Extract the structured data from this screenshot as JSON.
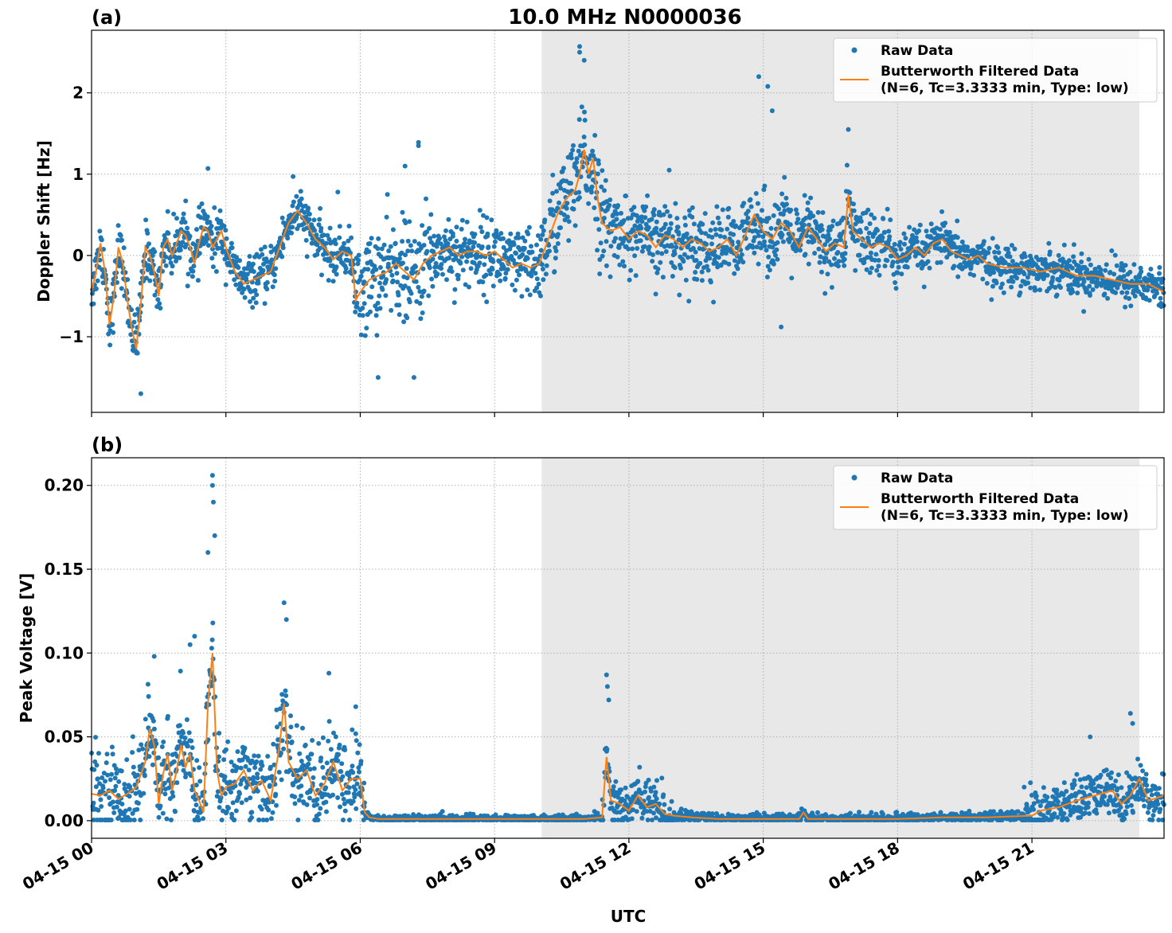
{
  "figure": {
    "title": "10.0 MHz N0000036",
    "xlabel": "UTC"
  },
  "colors": {
    "raw": "#1f77b4",
    "filtered": "#ff7f0e",
    "shade": "#e8e8e8",
    "grid": "#b0b0b0"
  },
  "chart_data": [
    {
      "type": "scatter",
      "panel_label": "(a)",
      "ylabel": "Doppler Shift [Hz]",
      "x_ticks": [
        "04-15 00",
        "04-15 03",
        "04-15 06",
        "04-15 09",
        "04-15 12",
        "04-15 15",
        "04-15 18",
        "04-15 21"
      ],
      "x_tick_hours": [
        0,
        3,
        6,
        9,
        12,
        15,
        18,
        21
      ],
      "xlim_hours": [
        0,
        23.95
      ],
      "ylim": [
        -1.93,
        2.77
      ],
      "y_ticks": [
        -1,
        0,
        1,
        2
      ],
      "y_tick_labels": [
        "−1",
        "0",
        "1",
        "2"
      ],
      "shaded_span_hours": [
        10.05,
        23.4
      ],
      "grid": true,
      "legend": {
        "placement": "top-right",
        "entries": [
          "Raw Data",
          "Butterworth Filtered Data",
          "(N=6, Tc=3.3333 min, Type: low)"
        ]
      },
      "series": [
        {
          "name": "Butterworth Filtered Data (N=6, Tc=3.3333 min, Type: low)",
          "kind": "line",
          "x": [
            0,
            0.1,
            0.2,
            0.3,
            0.4,
            0.5,
            0.6,
            0.7,
            0.8,
            0.9,
            1.0,
            1.1,
            1.2,
            1.3,
            1.4,
            1.5,
            1.6,
            1.7,
            1.8,
            1.9,
            2.0,
            2.1,
            2.2,
            2.3,
            2.4,
            2.5,
            2.6,
            2.7,
            2.8,
            2.9,
            3.0,
            3.2,
            3.4,
            3.6,
            3.8,
            4.0,
            4.2,
            4.4,
            4.6,
            4.8,
            5.0,
            5.2,
            5.4,
            5.6,
            5.8,
            5.9,
            6.0,
            6.2,
            6.4,
            6.6,
            6.8,
            7.0,
            7.2,
            7.4,
            7.6,
            7.8,
            8.0,
            8.2,
            8.4,
            8.6,
            8.8,
            9.0,
            9.2,
            9.4,
            9.6,
            9.8,
            10.0,
            10.2,
            10.4,
            10.6,
            10.8,
            10.9,
            11.0,
            11.1,
            11.2,
            11.3,
            11.4,
            11.6,
            11.8,
            12.0,
            12.2,
            12.4,
            12.6,
            12.8,
            13.0,
            13.2,
            13.4,
            13.6,
            13.8,
            14.0,
            14.2,
            14.4,
            14.6,
            14.8,
            15.0,
            15.2,
            15.4,
            15.6,
            15.8,
            16.0,
            16.2,
            16.4,
            16.6,
            16.8,
            16.9,
            17.0,
            17.2,
            17.4,
            17.6,
            17.8,
            18.0,
            18.2,
            18.4,
            18.6,
            18.8,
            19.0,
            19.2,
            19.4,
            19.6,
            19.8,
            20.0,
            20.4,
            20.8,
            21.2,
            21.6,
            22.0,
            22.4,
            22.8,
            23.2,
            23.6,
            23.95
          ],
          "y": [
            -0.45,
            -0.2,
            0.15,
            -0.2,
            -0.85,
            -0.5,
            0.1,
            -0.1,
            -0.55,
            -0.9,
            -1.15,
            -0.6,
            0.1,
            0.0,
            -0.2,
            -0.5,
            0.1,
            0.2,
            0.0,
            0.15,
            0.3,
            0.25,
            0.1,
            -0.1,
            0.15,
            0.35,
            0.3,
            0.1,
            0.2,
            0.3,
            0.1,
            -0.2,
            -0.35,
            -0.3,
            -0.25,
            -0.2,
            0.1,
            0.4,
            0.55,
            0.4,
            0.2,
            0.1,
            -0.05,
            0.05,
            0.0,
            -0.55,
            -0.45,
            -0.3,
            -0.25,
            -0.2,
            -0.1,
            -0.2,
            -0.3,
            -0.1,
            0.0,
            0.05,
            0.1,
            0.0,
            0.05,
            0.05,
            0.0,
            0.05,
            -0.05,
            -0.15,
            -0.1,
            -0.15,
            -0.1,
            0.2,
            0.5,
            0.7,
            0.8,
            1.0,
            1.3,
            1.0,
            1.2,
            0.7,
            0.4,
            0.3,
            0.35,
            0.2,
            0.3,
            0.25,
            0.1,
            0.25,
            0.2,
            0.1,
            0.2,
            0.15,
            0.05,
            0.1,
            0.2,
            0.0,
            0.25,
            0.5,
            0.3,
            0.2,
            0.4,
            0.3,
            0.1,
            0.35,
            0.2,
            0.05,
            0.15,
            0.1,
            0.75,
            0.3,
            0.2,
            0.1,
            0.15,
            0.1,
            -0.05,
            0.0,
            0.1,
            0.0,
            0.15,
            0.2,
            0.05,
            0.0,
            -0.05,
            0.0,
            -0.1,
            -0.15,
            -0.15,
            -0.2,
            -0.15,
            -0.25,
            -0.25,
            -0.3,
            -0.35,
            -0.35,
            -0.45
          ]
        },
        {
          "name": "Raw Data",
          "kind": "scatter",
          "spread": [
            {
              "from": 0,
              "to": 3.0,
              "sigma": 0.16
            },
            {
              "from": 3.0,
              "to": 5.9,
              "sigma": 0.14
            },
            {
              "from": 5.9,
              "to": 7.6,
              "sigma": 0.3
            },
            {
              "from": 7.6,
              "to": 10.0,
              "sigma": 0.22
            },
            {
              "from": 10.0,
              "to": 11.6,
              "sigma": 0.3
            },
            {
              "from": 11.6,
              "to": 18.0,
              "sigma": 0.22
            },
            {
              "from": 18.0,
              "to": 23.95,
              "sigma": 0.13
            }
          ],
          "extremes": [
            {
              "x": 1.1,
              "y": -1.7
            },
            {
              "x": 2.6,
              "y": 1.07
            },
            {
              "x": 4.5,
              "y": 0.97
            },
            {
              "x": 7.3,
              "y": 1.39
            },
            {
              "x": 7.3,
              "y": 1.35
            },
            {
              "x": 7.0,
              "y": 1.1
            },
            {
              "x": 6.4,
              "y": -1.5
            },
            {
              "x": 7.2,
              "y": -1.5
            },
            {
              "x": 10.9,
              "y": 2.57
            },
            {
              "x": 10.9,
              "y": 2.5
            },
            {
              "x": 11.0,
              "y": 2.4
            },
            {
              "x": 14.9,
              "y": 2.2
            },
            {
              "x": 15.1,
              "y": 2.08
            },
            {
              "x": 15.2,
              "y": 1.78
            },
            {
              "x": 16.9,
              "y": 1.55
            },
            {
              "x": 15.4,
              "y": -0.88
            },
            {
              "x": 12.9,
              "y": 1.05
            },
            {
              "x": 5.5,
              "y": 0.78
            }
          ]
        }
      ]
    },
    {
      "type": "scatter",
      "panel_label": "(b)",
      "ylabel": "Peak Voltage [V]",
      "x_ticks": [
        "04-15 00",
        "04-15 03",
        "04-15 06",
        "04-15 09",
        "04-15 12",
        "04-15 15",
        "04-15 18",
        "04-15 21"
      ],
      "x_tick_hours": [
        0,
        3,
        6,
        9,
        12,
        15,
        18,
        21
      ],
      "xlim_hours": [
        0,
        23.95
      ],
      "ylim": [
        -0.0105,
        0.2165
      ],
      "y_ticks": [
        0.0,
        0.05,
        0.1,
        0.15,
        0.2
      ],
      "y_tick_labels": [
        "0.00",
        "0.05",
        "0.10",
        "0.15",
        "0.20"
      ],
      "shaded_span_hours": [
        10.05,
        23.4
      ],
      "grid": true,
      "legend": {
        "placement": "top-right",
        "entries": [
          "Raw Data",
          "Butterworth Filtered Data",
          "(N=6, Tc=3.3333 min, Type: low)"
        ]
      },
      "series": [
        {
          "name": "Butterworth Filtered Data (N=6, Tc=3.3333 min, Type: low)",
          "kind": "line",
          "x": [
            0,
            0.2,
            0.4,
            0.6,
            0.8,
            1.0,
            1.2,
            1.3,
            1.4,
            1.5,
            1.6,
            1.7,
            1.8,
            1.9,
            2.0,
            2.1,
            2.2,
            2.3,
            2.4,
            2.5,
            2.6,
            2.7,
            2.8,
            2.9,
            3.0,
            3.2,
            3.4,
            3.6,
            3.8,
            4.0,
            4.2,
            4.3,
            4.4,
            4.6,
            4.8,
            5.0,
            5.2,
            5.4,
            5.6,
            5.8,
            6.0,
            6.1,
            6.2,
            6.4,
            7.0,
            8.0,
            9.0,
            10.0,
            11.0,
            11.4,
            11.5,
            11.6,
            11.8,
            12.0,
            12.2,
            12.4,
            12.6,
            12.8,
            13.0,
            13.4,
            14.0,
            15.0,
            15.8,
            15.9,
            16.0,
            17.0,
            18.0,
            19.0,
            20.0,
            21.0,
            21.2,
            21.6,
            22.0,
            22.4,
            22.8,
            23.0,
            23.2,
            23.4,
            23.6,
            23.95
          ],
          "y": [
            0.016,
            0.015,
            0.018,
            0.013,
            0.016,
            0.02,
            0.035,
            0.055,
            0.045,
            0.01,
            0.028,
            0.04,
            0.018,
            0.03,
            0.045,
            0.032,
            0.04,
            0.018,
            0.012,
            0.005,
            0.07,
            0.1,
            0.03,
            0.015,
            0.02,
            0.022,
            0.03,
            0.018,
            0.024,
            0.012,
            0.045,
            0.07,
            0.035,
            0.025,
            0.03,
            0.015,
            0.022,
            0.035,
            0.018,
            0.025,
            0.025,
            0.005,
            0.002,
            0.001,
            0.001,
            0.001,
            0.001,
            0.001,
            0.001,
            0.002,
            0.038,
            0.012,
            0.01,
            0.006,
            0.015,
            0.008,
            0.01,
            0.004,
            0.003,
            0.002,
            0.001,
            0.001,
            0.001,
            0.005,
            0.001,
            0.001,
            0.001,
            0.002,
            0.002,
            0.003,
            0.006,
            0.008,
            0.012,
            0.015,
            0.018,
            0.01,
            0.015,
            0.025,
            0.012,
            0.015
          ]
        },
        {
          "name": "Raw Data",
          "kind": "scatter",
          "spread": [
            {
              "from": 0,
              "to": 6.1,
              "sigma": 0.013
            },
            {
              "from": 6.1,
              "to": 11.4,
              "sigma": 0.0012
            },
            {
              "from": 11.4,
              "to": 13.0,
              "sigma": 0.008
            },
            {
              "from": 13.0,
              "to": 20.8,
              "sigma": 0.0015
            },
            {
              "from": 20.8,
              "to": 23.95,
              "sigma": 0.007
            }
          ],
          "extremes": [
            {
              "x": 2.7,
              "y": 0.206
            },
            {
              "x": 2.7,
              "y": 0.2
            },
            {
              "x": 2.72,
              "y": 0.19
            },
            {
              "x": 2.75,
              "y": 0.17
            },
            {
              "x": 2.6,
              "y": 0.16
            },
            {
              "x": 4.3,
              "y": 0.13
            },
            {
              "x": 4.35,
              "y": 0.12
            },
            {
              "x": 2.3,
              "y": 0.11
            },
            {
              "x": 2.2,
              "y": 0.105
            },
            {
              "x": 1.4,
              "y": 0.098
            },
            {
              "x": 5.3,
              "y": 0.088
            },
            {
              "x": 11.5,
              "y": 0.087
            },
            {
              "x": 11.52,
              "y": 0.08
            },
            {
              "x": 11.55,
              "y": 0.072
            },
            {
              "x": 23.2,
              "y": 0.064
            },
            {
              "x": 23.25,
              "y": 0.058
            },
            {
              "x": 22.3,
              "y": 0.05
            },
            {
              "x": 5.9,
              "y": 0.068
            }
          ]
        }
      ]
    }
  ]
}
